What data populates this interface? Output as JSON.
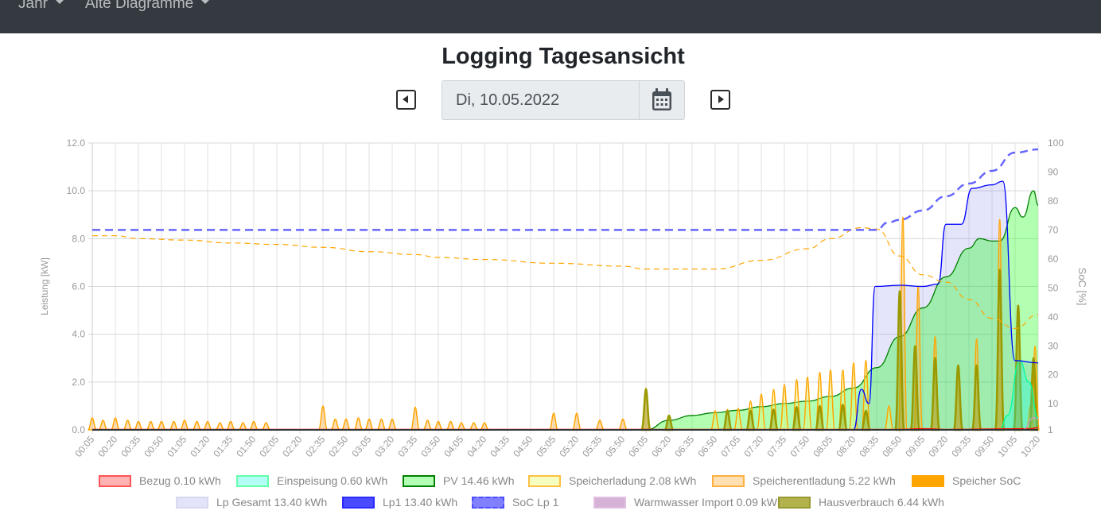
{
  "nav": {
    "items": [
      {
        "label": "Jahr"
      },
      {
        "label": "Alte Diagramme"
      }
    ]
  },
  "title": "Logging Tagesansicht",
  "date": {
    "value": "Di, 10.05.2022",
    "prev_icon": "caret-left-square",
    "next_icon": "caret-right-square",
    "calendar_icon": "calendar"
  },
  "chart_data": {
    "type": "line",
    "xlabel": "",
    "ylabel": "Leistung [kW]",
    "y2label": "SoC [%]",
    "ylim": [
      0,
      12
    ],
    "yticks": [
      "0.0",
      "2.0",
      "4.0",
      "6.0",
      "8.0",
      "10.0",
      "12.0"
    ],
    "y2lim": [
      1,
      100
    ],
    "y2ticks": [
      "1",
      "10",
      "20",
      "30",
      "40",
      "50",
      "60",
      "70",
      "80",
      "90",
      "100"
    ],
    "xticks": [
      "00:05",
      "00:20",
      "00:35",
      "00:50",
      "01:05",
      "01:20",
      "01:35",
      "01:50",
      "02:05",
      "02:20",
      "02:35",
      "02:50",
      "03:05",
      "03:20",
      "03:35",
      "03:50",
      "04:05",
      "04:20",
      "04:35",
      "04:50",
      "05:05",
      "05:20",
      "05:35",
      "05:50",
      "06:05",
      "06:20",
      "06:35",
      "06:50",
      "07:05",
      "07:20",
      "07:35",
      "07:50",
      "08:05",
      "08:20",
      "08:35",
      "08:50",
      "09:05",
      "09:20",
      "09:35",
      "09:50",
      "10:05",
      "10:20"
    ],
    "grid": true,
    "legend": "bottom",
    "series": [
      {
        "name": "Bezug 0.10 kWh",
        "color": "#ff0000",
        "fill": "rgba(255,0,0,0.3)",
        "points": [
          [
            "00:05",
            0.02
          ],
          [
            "08:50",
            0.02
          ],
          [
            "09:05",
            0.05
          ],
          [
            "09:20",
            0.02
          ],
          [
            "10:15",
            0.05
          ],
          [
            "10:20",
            0.1
          ]
        ]
      },
      {
        "name": "Einspeisung 0.60 kWh",
        "color": "#00ff99",
        "fill": "rgba(0,255,230,0.3)",
        "points": [
          [
            "09:55",
            0
          ],
          [
            "10:00",
            0.6
          ],
          [
            "10:08",
            2.9
          ],
          [
            "10:14",
            2.0
          ],
          [
            "10:20",
            0.5
          ]
        ]
      },
      {
        "name": "PV 14.46 kWh",
        "color": "#008000",
        "fill": "rgba(0,255,0,0.3)",
        "points": [
          [
            "06:05",
            0
          ],
          [
            "06:20",
            0.4
          ],
          [
            "06:35",
            0.6
          ],
          [
            "06:50",
            0.72
          ],
          [
            "07:05",
            0.82
          ],
          [
            "07:20",
            0.97
          ],
          [
            "07:35",
            1.1
          ],
          [
            "07:50",
            1.2
          ],
          [
            "08:05",
            1.4
          ],
          [
            "08:20",
            1.75
          ],
          [
            "08:35",
            2.6
          ],
          [
            "08:50",
            3.9
          ],
          [
            "09:05",
            5.1
          ],
          [
            "09:20",
            6.4
          ],
          [
            "09:35",
            7.6
          ],
          [
            "09:42",
            8.0
          ],
          [
            "09:50",
            7.9
          ],
          [
            "09:55",
            7.9
          ],
          [
            "10:05",
            9.3
          ],
          [
            "10:10",
            8.9
          ],
          [
            "10:17",
            10.0
          ],
          [
            "10:20",
            9.4
          ]
        ]
      },
      {
        "name": "Speicherladung 2.08 kWh",
        "color": "#ffa500",
        "fill": "rgba(240,255,120,0.4)",
        "spikes": [
          [
            "06:50",
            0.8
          ],
          [
            "06:58",
            0.85
          ],
          [
            "07:05",
            0.9
          ],
          [
            "07:13",
            1.2
          ],
          [
            "07:20",
            1.5
          ],
          [
            "07:28",
            1.7
          ],
          [
            "07:35",
            1.9
          ],
          [
            "07:43",
            2.1
          ],
          [
            "07:50",
            2.2
          ],
          [
            "07:58",
            2.4
          ],
          [
            "08:05",
            2.5
          ],
          [
            "08:13",
            2.5
          ],
          [
            "08:20",
            2.8
          ],
          [
            "08:28",
            2.9
          ],
          [
            "08:43",
            1.0
          ],
          [
            "10:15",
            1.0
          ]
        ]
      },
      {
        "name": "Speicherentladung 5.22 kWh",
        "color": "#ffa500",
        "fill": "rgba(255,180,80,0.4)",
        "spikes": [
          [
            "00:05",
            0.5
          ],
          [
            "00:12",
            0.4
          ],
          [
            "00:20",
            0.5
          ],
          [
            "00:28",
            0.4
          ],
          [
            "00:35",
            0.35
          ],
          [
            "00:43",
            0.35
          ],
          [
            "00:50",
            0.35
          ],
          [
            "00:58",
            0.35
          ],
          [
            "01:05",
            0.4
          ],
          [
            "01:13",
            0.35
          ],
          [
            "01:20",
            0.35
          ],
          [
            "01:28",
            0.3
          ],
          [
            "01:35",
            0.35
          ],
          [
            "01:43",
            0.3
          ],
          [
            "01:50",
            0.35
          ],
          [
            "01:58",
            0.3
          ],
          [
            "02:35",
            1.0
          ],
          [
            "02:43",
            0.45
          ],
          [
            "02:50",
            0.45
          ],
          [
            "02:58",
            0.5
          ],
          [
            "03:05",
            0.45
          ],
          [
            "03:13",
            0.45
          ],
          [
            "03:20",
            0.45
          ],
          [
            "03:35",
            0.95
          ],
          [
            "03:43",
            0.4
          ],
          [
            "03:50",
            0.35
          ],
          [
            "03:58",
            0.35
          ],
          [
            "04:05",
            0.3
          ],
          [
            "04:13",
            0.3
          ],
          [
            "04:20",
            0.3
          ],
          [
            "05:05",
            0.7
          ],
          [
            "05:20",
            0.7
          ],
          [
            "05:35",
            0.4
          ],
          [
            "05:50",
            0.45
          ],
          [
            "06:05",
            1.75
          ],
          [
            "08:52",
            8.9
          ],
          [
            "09:02",
            6.0
          ],
          [
            "09:13",
            3.9
          ],
          [
            "09:28",
            2.5
          ],
          [
            "09:40",
            3.8
          ],
          [
            "09:55",
            8.8
          ],
          [
            "10:07",
            5.2
          ],
          [
            "10:18",
            3.5
          ]
        ]
      },
      {
        "name": "Speicher SoC",
        "color": "#ffa500",
        "axis": "right",
        "dash": true,
        "points": [
          [
            "00:05",
            68
          ],
          [
            "00:20",
            68
          ],
          [
            "00:35",
            67
          ],
          [
            "01:05",
            66.5
          ],
          [
            "01:35",
            65.5
          ],
          [
            "02:05",
            65
          ],
          [
            "02:35",
            64
          ],
          [
            "03:05",
            62.5
          ],
          [
            "03:35",
            61.5
          ],
          [
            "03:50",
            60.5
          ],
          [
            "04:20",
            59.8
          ],
          [
            "05:05",
            58.5
          ],
          [
            "05:50",
            57.5
          ],
          [
            "06:05",
            56.5
          ],
          [
            "06:50",
            56.5
          ],
          [
            "07:20",
            59.5
          ],
          [
            "07:50",
            63.5
          ],
          [
            "08:05",
            67
          ],
          [
            "08:25",
            70.8
          ],
          [
            "08:35",
            70.3
          ],
          [
            "08:50",
            61
          ],
          [
            "09:05",
            54.5
          ],
          [
            "09:20",
            52
          ],
          [
            "09:35",
            46
          ],
          [
            "09:50",
            39.5
          ],
          [
            "10:05",
            36
          ],
          [
            "10:20",
            40.8
          ]
        ]
      },
      {
        "name": "Lp Gesamt 13.40 kWh",
        "color": "rgba(0,0,255,0.2)",
        "fill": "rgba(120,120,230,0.2)",
        "points": [
          [
            "08:20",
            0.0
          ],
          [
            "08:25",
            1.7
          ],
          [
            "08:30",
            1.1
          ],
          [
            "08:34",
            6.0
          ],
          [
            "08:50",
            6.05
          ],
          [
            "09:05",
            6.0
          ],
          [
            "09:15",
            6.1
          ],
          [
            "09:20",
            8.6
          ],
          [
            "09:30",
            8.6
          ],
          [
            "09:37",
            10.1
          ],
          [
            "09:50",
            10.25
          ],
          [
            "09:57",
            10.4
          ],
          [
            "10:05",
            2.9
          ],
          [
            "10:20",
            2.8
          ]
        ]
      },
      {
        "name": "Lp1 13.40 kWh",
        "color": "#0000ff",
        "points": [
          [
            "08:20",
            0.0
          ],
          [
            "08:25",
            1.7
          ],
          [
            "08:30",
            1.1
          ],
          [
            "08:34",
            6.0
          ],
          [
            "08:50",
            6.05
          ],
          [
            "09:05",
            6.0
          ],
          [
            "09:15",
            6.1
          ],
          [
            "09:20",
            8.6
          ],
          [
            "09:30",
            8.6
          ],
          [
            "09:37",
            10.1
          ],
          [
            "09:50",
            10.25
          ],
          [
            "09:57",
            10.4
          ],
          [
            "10:05",
            2.9
          ],
          [
            "10:20",
            2.8
          ]
        ]
      },
      {
        "name": "SoC Lp 1",
        "color": "#6666ff",
        "axis": "right",
        "dash": true,
        "points": [
          [
            "00:05",
            70
          ],
          [
            "08:35",
            70
          ],
          [
            "08:42",
            72.5
          ],
          [
            "08:50",
            73.5
          ],
          [
            "09:05",
            76.7
          ],
          [
            "09:20",
            81.6
          ],
          [
            "09:35",
            86
          ],
          [
            "09:50",
            90.4
          ],
          [
            "10:05",
            96.7
          ],
          [
            "10:20",
            97.8
          ]
        ]
      },
      {
        "name": "Warmwasser Import 0.09 kWh",
        "color": "#cc99cc",
        "points": [
          [
            "10:10",
            0
          ],
          [
            "10:17",
            0.5
          ],
          [
            "10:20",
            0.45
          ]
        ]
      },
      {
        "name": "Hausverbrauch 6.44 kWh",
        "color": "#999900",
        "fill": "rgba(150,150,0,0.4)",
        "spikes": [
          [
            "06:05",
            1.7
          ],
          [
            "06:20",
            0.6
          ],
          [
            "06:58",
            0.8
          ],
          [
            "07:13",
            0.8
          ],
          [
            "07:28",
            0.85
          ],
          [
            "07:43",
            0.95
          ],
          [
            "07:58",
            1.0
          ],
          [
            "08:13",
            1.05
          ],
          [
            "08:28",
            0.8
          ],
          [
            "08:50",
            5.8
          ],
          [
            "09:00",
            3.5
          ],
          [
            "09:13",
            3.0
          ],
          [
            "09:28",
            2.7
          ],
          [
            "09:40",
            2.7
          ],
          [
            "09:55",
            6.7
          ],
          [
            "10:07",
            5.2
          ],
          [
            "10:17",
            3.0
          ]
        ]
      }
    ]
  },
  "legend": [
    {
      "label": "Bezug 0.10 kWh",
      "fill": "#ffb3b3",
      "border": "#ff5555"
    },
    {
      "label": "Einspeisung 0.60 kWh",
      "fill": "#b3fff6",
      "border": "#66ffaa"
    },
    {
      "label": "PV 14.46 kWh",
      "fill": "#b3ffb3",
      "border": "#008000"
    },
    {
      "label": "Speicherladung 2.08 kWh",
      "fill": "#f5ffc0",
      "border": "#ffc040"
    },
    {
      "label": "Speicherentladung 5.22 kWh",
      "fill": "#ffe0b3",
      "border": "#ffb040"
    },
    {
      "label": "Speicher SoC",
      "fill": "#ffa500",
      "border": "#ffa500",
      "dash": true
    },
    {
      "label": "Lp Gesamt 13.40 kWh",
      "fill": "#e3e3fa",
      "border": "#d8d8f0"
    },
    {
      "label": "Lp1 13.40 kWh",
      "fill": "#4a4aff",
      "border": "#2a2aff"
    },
    {
      "label": "SoC Lp 1",
      "fill": "#8080ff",
      "border": "#4a4aff",
      "dash": true
    },
    {
      "label": "Warmwasser Import 0.09 kWh",
      "fill": "#d6b3d6",
      "border": "#e0c0e0"
    },
    {
      "label": "Hausverbrauch 6.44 kWh",
      "fill": "#b3b34d",
      "border": "#999933"
    }
  ]
}
